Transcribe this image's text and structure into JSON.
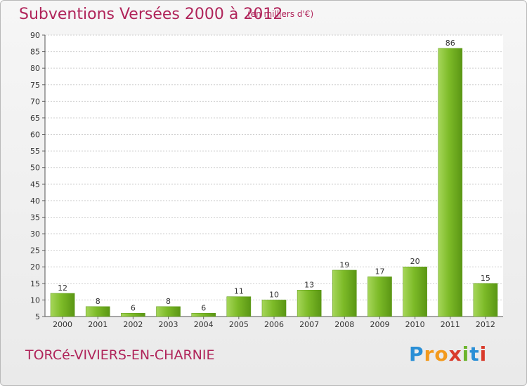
{
  "chart_data": {
    "type": "bar",
    "title": "Subventions Versées 2000 à 2012",
    "subtitle": "(en milliers d'€)",
    "categories": [
      "2000",
      "2001",
      "2002",
      "2003",
      "2004",
      "2005",
      "2006",
      "2007",
      "2008",
      "2009",
      "2010",
      "2011",
      "2012"
    ],
    "values": [
      12,
      8,
      6,
      8,
      6,
      11,
      10,
      13,
      19,
      17,
      20,
      86,
      15
    ],
    "ylim": [
      5,
      90
    ],
    "yticks": [
      5,
      10,
      15,
      20,
      25,
      30,
      35,
      40,
      45,
      50,
      55,
      60,
      65,
      70,
      75,
      80,
      85,
      90
    ],
    "grid": true,
    "bar_color": "#7dbb28",
    "bar_highlight": "#a6d65a",
    "bar_shadow": "#5a9614"
  },
  "commune": "TORCé-VIVIERS-EN-CHARNIE",
  "logo": {
    "letters": [
      "P",
      "r",
      "o",
      "x",
      "i",
      "t",
      "i"
    ],
    "colors": [
      "#2a8fd6",
      "#f39a1e",
      "#f39a1e",
      "#d93b2b",
      "#6cb52d",
      "#2a8fd6",
      "#d93b2b"
    ]
  }
}
